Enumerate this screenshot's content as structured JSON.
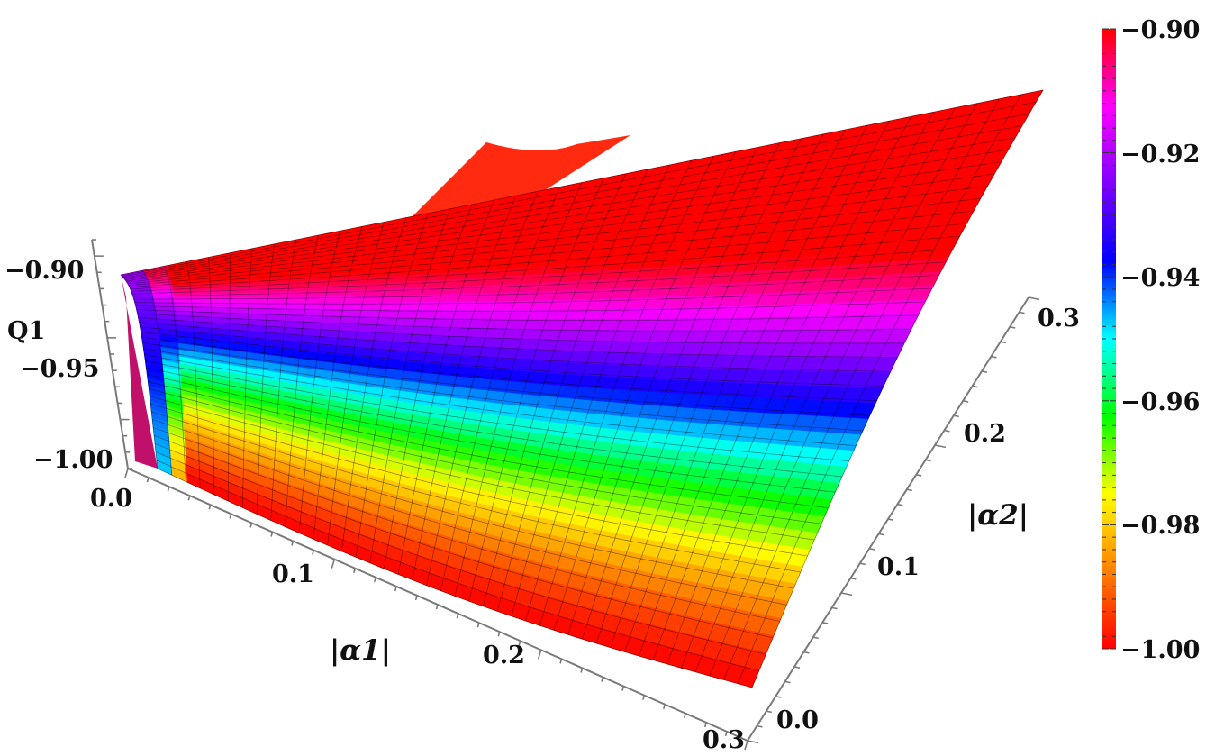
{
  "chart_data": {
    "type": "surface3d",
    "x_axis": {
      "label": "|α1|",
      "range": [
        0,
        0.3
      ],
      "ticks": [
        "0.0",
        "0.1",
        "0.2",
        "0.3"
      ]
    },
    "y_axis": {
      "label": "|α2|",
      "range": [
        0,
        0.3
      ],
      "ticks": [
        "0.0",
        "0.1",
        "0.2",
        "0.3"
      ]
    },
    "z_axis": {
      "label": "Q1",
      "range": [
        -1.02,
        -0.88
      ],
      "ticks": [
        "−0.90",
        "−0.95",
        "−1.00"
      ]
    },
    "colorbar": {
      "range": [
        -1.0,
        -0.9
      ],
      "ticks": [
        "−0.90",
        "−0.92",
        "−0.94",
        "−0.96",
        "−0.98",
        "−1.00"
      ],
      "colormap": [
        "#ff0000",
        "#ff8000",
        "#ffff00",
        "#00ff00",
        "#00ffff",
        "#0000ff",
        "#8000ff",
        "#ff00ff",
        "#ff0000"
      ]
    },
    "grid": true,
    "surface_samples": {
      "x": [
        0.0,
        0.1,
        0.2,
        0.3
      ],
      "y": [
        0.0,
        0.1,
        0.2,
        0.3
      ],
      "z": [
        [
          -0.925,
          -0.925,
          -0.9,
          -0.9
        ],
        [
          -1.0,
          -0.985,
          -0.95,
          -0.915
        ],
        [
          -1.0,
          -0.98,
          -0.935,
          -0.91
        ],
        [
          -0.995,
          -0.96,
          -0.93,
          -0.9
        ]
      ]
    }
  }
}
